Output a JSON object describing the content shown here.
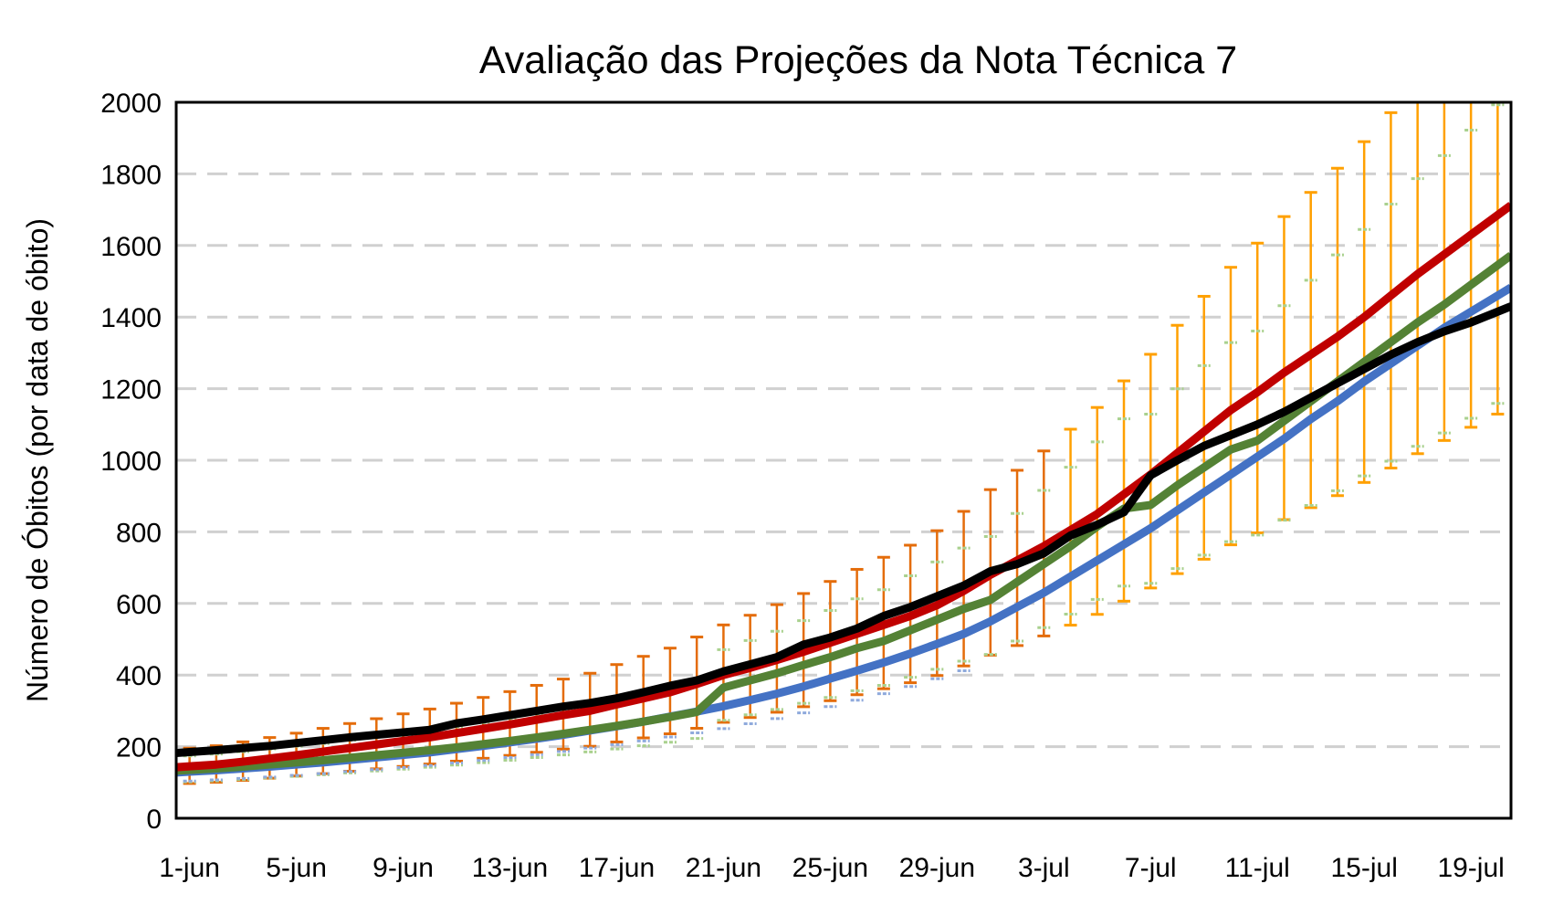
{
  "chart_data": {
    "type": "line",
    "title": "Avaliação das Projeções da Nota Técnica 7",
    "xlabel": "",
    "ylabel": "Número de Óbitos (por data de óbito)",
    "ylim": [
      0,
      2000
    ],
    "yticks": [
      "0",
      "200",
      "400",
      "600",
      "800",
      "1000",
      "1200",
      "1400",
      "1600",
      "1800",
      "2000"
    ],
    "grid": true,
    "legend": "none",
    "n_days": 50,
    "xtick_labels": [
      "1-jun",
      "5-jun",
      "9-jun",
      "13-jun",
      "17-jun",
      "21-jun",
      "25-jun",
      "29-jun",
      "3-jul",
      "7-jul",
      "11-jul",
      "15-jul",
      "19-jul"
    ],
    "xtick_every": 4,
    "series": [
      {
        "id": "blue",
        "color": "#4472C4",
        "values": [
          130,
          134,
          139,
          144,
          150,
          156,
          163,
          170,
          177,
          184,
          193,
          202,
          212,
          222,
          233,
          245,
          257,
          270,
          284,
          298,
          313,
          330,
          348,
          368,
          390,
          412,
          435,
          460,
          487,
          515,
          550,
          590,
          630,
          675,
          720,
          765,
          810,
          860,
          910,
          960,
          1010,
          1060,
          1115,
          1165,
          1220,
          1270,
          1320,
          1370,
          1415,
          1460
        ]
      },
      {
        "id": "green",
        "color": "#548235",
        "values": [
          135,
          139,
          144,
          150,
          156,
          162,
          169,
          176,
          183,
          190,
          198,
          207,
          216,
          226,
          236,
          247,
          258,
          270,
          283,
          297,
          365,
          385,
          405,
          428,
          450,
          475,
          495,
          525,
          555,
          585,
          610,
          660,
          710,
          760,
          815,
          865,
          875,
          930,
          980,
          1030,
          1055,
          1110,
          1165,
          1220,
          1275,
          1330,
          1385,
          1435,
          1490,
          1545
        ]
      },
      {
        "id": "red",
        "color": "#C00000",
        "values": [
          145,
          150,
          158,
          167,
          176,
          186,
          196,
          206,
          216,
          226,
          238,
          250,
          262,
          275,
          288,
          300,
          318,
          335,
          352,
          375,
          400,
          420,
          442,
          465,
          490,
          515,
          540,
          565,
          595,
          635,
          680,
          720,
          760,
          805,
          850,
          905,
          960,
          1020,
          1080,
          1140,
          1190,
          1245,
          1295,
          1345,
          1400,
          1460,
          1520,
          1575,
          1630,
          1685
        ]
      },
      {
        "id": "black",
        "color": "#000000",
        "values": [
          185,
          190,
          196,
          202,
          210,
          218,
          226,
          233,
          240,
          247,
          265,
          276,
          288,
          300,
          312,
          322,
          335,
          352,
          370,
          385,
          410,
          430,
          450,
          485,
          505,
          530,
          565,
          590,
          620,
          650,
          690,
          710,
          740,
          790,
          820,
          855,
          958,
          1000,
          1040,
          1070,
          1100,
          1135,
          1175,
          1215,
          1255,
          1295,
          1330,
          1360,
          1385,
          1415
        ]
      }
    ],
    "error_bars": [
      {
        "of": "red",
        "lower_factor": 0.67,
        "upper_factor": 1.35,
        "color_early": "#E46C0A",
        "color_late": "#FFA000",
        "switch_day": 33
      },
      {
        "of": "green",
        "lower_factor": 0.75,
        "upper_factor": 1.29,
        "color": "#A9D18E"
      },
      {
        "of": "blue",
        "lower_factor": 0.8,
        "color": "#8FAADC",
        "last_day": 29
      }
    ]
  }
}
